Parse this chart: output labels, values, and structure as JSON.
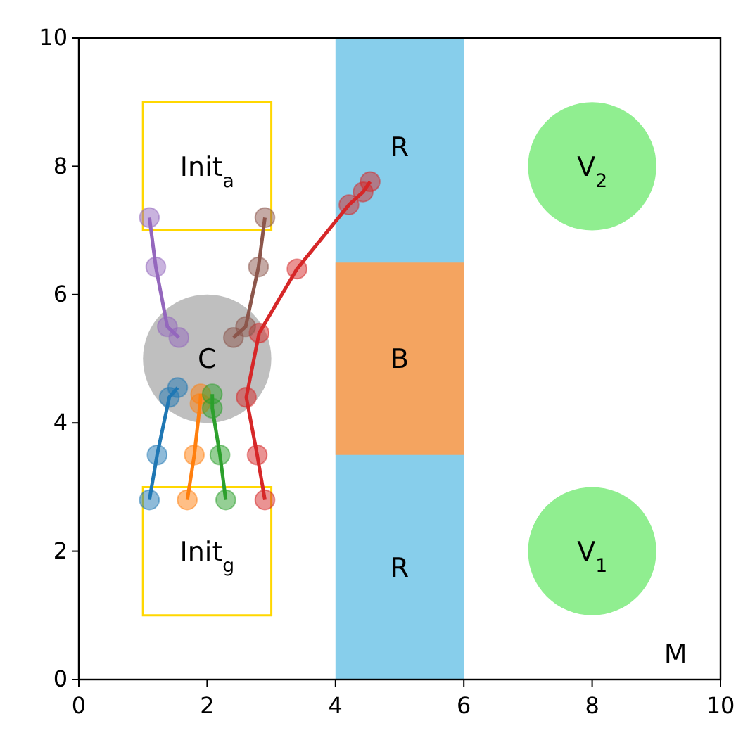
{
  "chart_data": {
    "type": "line",
    "marker": "circle",
    "grid": false,
    "bands": [
      {
        "axis": "x",
        "from": 4,
        "to": 6,
        "color": "#87ceeb"
      }
    ],
    "xlim": [
      0,
      10
    ],
    "ylim": [
      0,
      10
    ],
    "xticks": [
      0,
      2,
      4,
      6,
      8,
      10
    ],
    "yticks": [
      0,
      2,
      4,
      6,
      8,
      10
    ],
    "series": [
      {
        "color": "#1f77b4",
        "x": [
          1.1,
          1.22,
          1.41,
          1.54
        ],
        "values": [
          2.8,
          3.5,
          4.4,
          4.55
        ]
      },
      {
        "color": "#ff7f0e",
        "x": [
          1.69,
          1.8,
          1.89,
          1.9
        ],
        "values": [
          2.8,
          3.5,
          4.3,
          4.45
        ]
      },
      {
        "color": "#2ca02c",
        "x": [
          2.29,
          2.2,
          2.08,
          2.08
        ],
        "values": [
          2.8,
          3.5,
          4.23,
          4.45
        ]
      },
      {
        "color": "#d62728",
        "x": [
          2.9,
          2.78,
          2.61,
          2.81,
          3.4,
          4.21,
          4.43,
          4.54
        ],
        "values": [
          2.8,
          3.5,
          4.4,
          5.4,
          6.4,
          7.4,
          7.6,
          7.76
        ]
      },
      {
        "color": "#9467bd",
        "x": [
          1.1,
          1.2,
          1.38,
          1.56
        ],
        "values": [
          7.2,
          6.43,
          5.5,
          5.33
        ]
      },
      {
        "color": "#8c564b",
        "x": [
          2.9,
          2.8,
          2.6,
          2.41
        ],
        "values": [
          7.2,
          6.43,
          5.5,
          5.33
        ]
      }
    ],
    "annotations": [
      "Init$_{a}$",
      "Init$_{g}$",
      "C",
      "V$_{2}$",
      "V$_{1}$",
      "R",
      "B",
      "R",
      "M"
    ]
  }
}
